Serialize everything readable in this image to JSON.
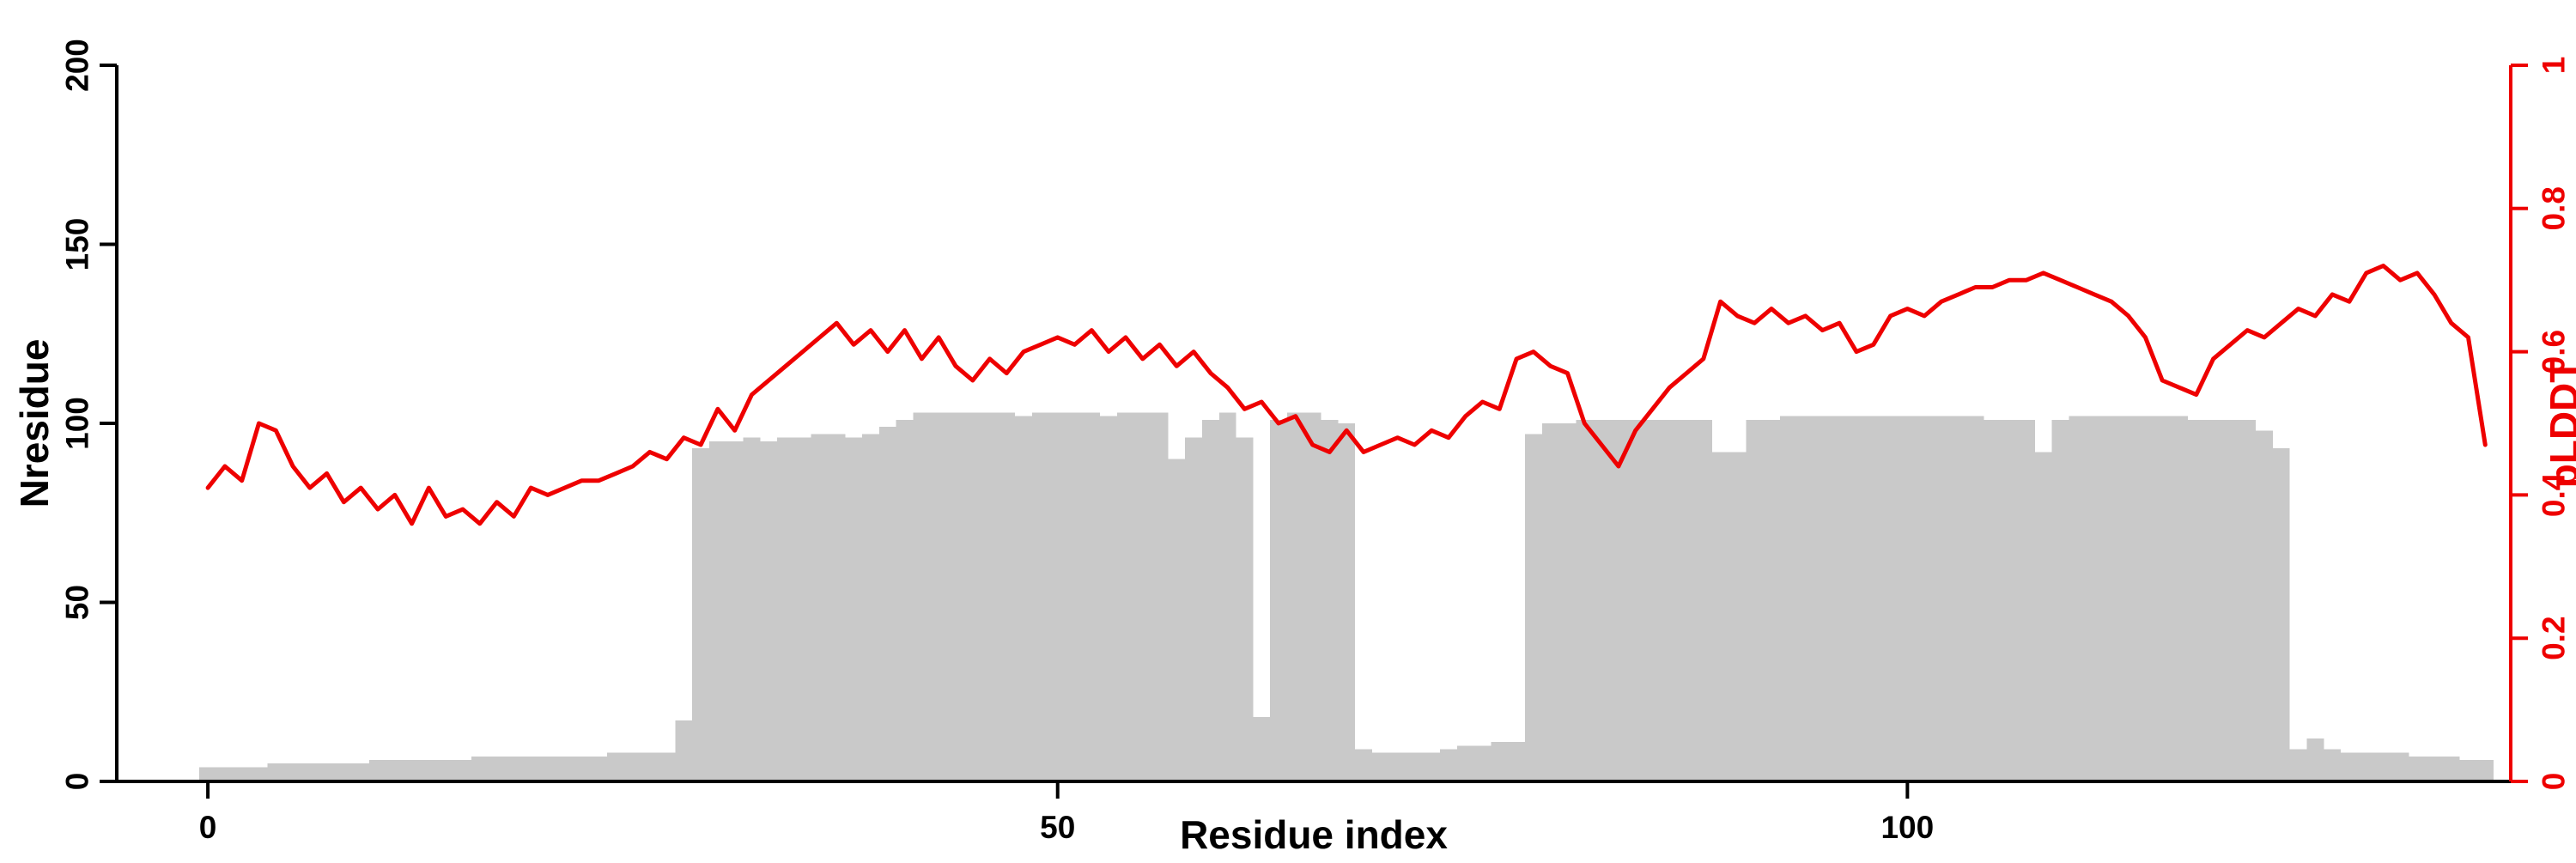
{
  "figure": {
    "background": "#ffffff"
  },
  "chart_data": {
    "type": "bar",
    "overlay_type": "line",
    "title": "",
    "xlabel": "Residue index",
    "ylabel_left": "Nresidue",
    "ylabel_right": "pLDDT",
    "x_start": 0,
    "x_step": 1,
    "x_max": 134,
    "xticks": [
      0,
      50,
      100
    ],
    "ylim_left": [
      0,
      200
    ],
    "yticks_left": [
      0,
      50,
      100,
      150,
      200
    ],
    "ylim_right": [
      0,
      1
    ],
    "yticks_right": [
      0,
      0.2,
      0.4,
      0.6,
      0.8,
      1
    ],
    "grid": false,
    "legend": "none",
    "colors": {
      "bar": "#c9c9c9",
      "line": "#ee0000",
      "axis_left": "#000000",
      "axis_bottom": "#000000",
      "axis_right": "#ee0000"
    },
    "series": [
      {
        "name": "Nresidue",
        "type": "bar",
        "axis": "left",
        "values": [
          4,
          4,
          4,
          4,
          5,
          5,
          5,
          5,
          5,
          5,
          6,
          6,
          6,
          6,
          6,
          6,
          7,
          7,
          7,
          7,
          7,
          7,
          7,
          7,
          8,
          8,
          8,
          8,
          17,
          93,
          95,
          95,
          96,
          95,
          96,
          96,
          97,
          97,
          96,
          97,
          99,
          101,
          103,
          103,
          103,
          103,
          103,
          103,
          102,
          103,
          103,
          103,
          103,
          102,
          103,
          103,
          103,
          90,
          96,
          101,
          103,
          96,
          18,
          101,
          103,
          103,
          101,
          100,
          9,
          8,
          8,
          8,
          8,
          9,
          10,
          10,
          11,
          11,
          97,
          100,
          100,
          101,
          101,
          101,
          101,
          101,
          101,
          101,
          101,
          92,
          92,
          101,
          101,
          102,
          102,
          102,
          102,
          102,
          102,
          102,
          102,
          102,
          102,
          102,
          102,
          101,
          101,
          101,
          92,
          101,
          102,
          102,
          102,
          102,
          102,
          102,
          102,
          101,
          101,
          101,
          101,
          98,
          93,
          9,
          12,
          9,
          8,
          8,
          8,
          8,
          7,
          7,
          7,
          6,
          6
        ]
      },
      {
        "name": "pLDDT",
        "type": "line",
        "axis": "right",
        "values": [
          0.41,
          0.44,
          0.42,
          0.5,
          0.49,
          0.44,
          0.41,
          0.43,
          0.39,
          0.41,
          0.38,
          0.4,
          0.36,
          0.41,
          0.37,
          0.38,
          0.36,
          0.39,
          0.37,
          0.41,
          0.4,
          0.41,
          0.42,
          0.42,
          0.43,
          0.44,
          0.46,
          0.45,
          0.48,
          0.47,
          0.52,
          0.49,
          0.54,
          0.56,
          0.58,
          0.6,
          0.62,
          0.64,
          0.61,
          0.63,
          0.6,
          0.63,
          0.59,
          0.62,
          0.58,
          0.56,
          0.59,
          0.57,
          0.6,
          0.61,
          0.62,
          0.61,
          0.63,
          0.6,
          0.62,
          0.59,
          0.61,
          0.58,
          0.6,
          0.57,
          0.55,
          0.52,
          0.53,
          0.5,
          0.51,
          0.47,
          0.46,
          0.49,
          0.46,
          0.47,
          0.48,
          0.47,
          0.49,
          0.48,
          0.51,
          0.53,
          0.52,
          0.59,
          0.6,
          0.58,
          0.57,
          0.5,
          0.47,
          0.44,
          0.49,
          0.52,
          0.55,
          0.57,
          0.59,
          0.67,
          0.65,
          0.64,
          0.66,
          0.64,
          0.65,
          0.63,
          0.64,
          0.6,
          0.61,
          0.65,
          0.66,
          0.65,
          0.67,
          0.68,
          0.69,
          0.69,
          0.7,
          0.7,
          0.71,
          0.7,
          0.69,
          0.68,
          0.67,
          0.65,
          0.62,
          0.56,
          0.55,
          0.54,
          0.59,
          0.61,
          0.63,
          0.62,
          0.64,
          0.66,
          0.65,
          0.68,
          0.67,
          0.71,
          0.72,
          0.7,
          0.71,
          0.68,
          0.64,
          0.62,
          0.47
        ]
      }
    ]
  }
}
